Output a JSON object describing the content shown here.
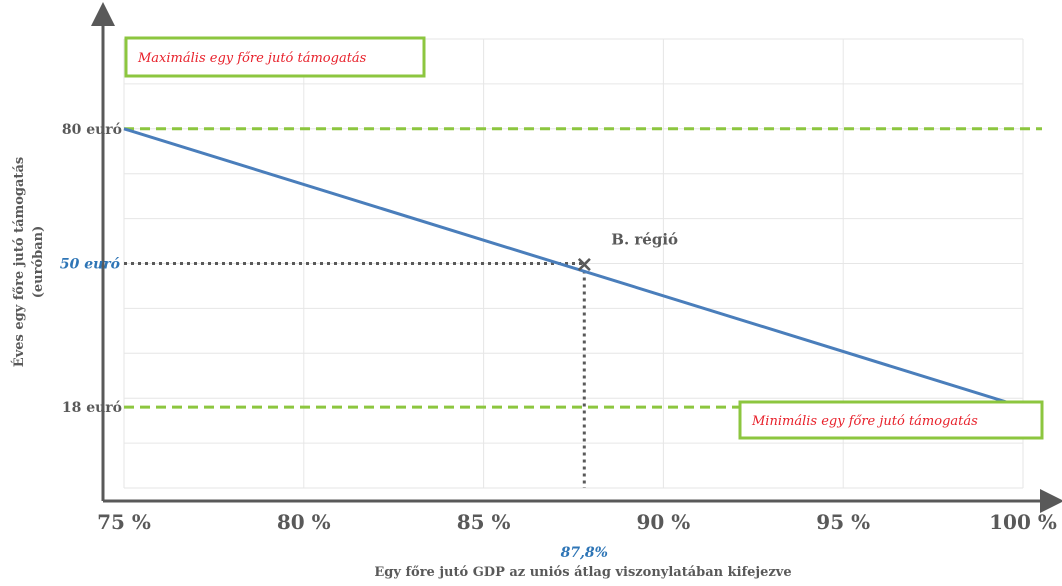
{
  "chart_data": {
    "type": "line",
    "title": "",
    "xlabel": "Egy főre jutó GDP az uniós átlag viszonylatában kifejezve",
    "ylabel_line1": "Éves egy főre jutó támogatás",
    "ylabel_line2": "(euróban)",
    "xlim": [
      75,
      100
    ],
    "ylim": [
      0,
      100
    ],
    "x_ticks": [
      {
        "value": 75,
        "label": "75 %"
      },
      {
        "value": 80,
        "label": "80 %"
      },
      {
        "value": 85,
        "label": "85 %"
      },
      {
        "value": 90,
        "label": "90 %"
      },
      {
        "value": 95,
        "label": "95 %"
      },
      {
        "value": 100,
        "label": "100 %"
      }
    ],
    "y_ticks": [
      {
        "value": 80,
        "label": "80 euró"
      },
      {
        "value": 18,
        "label": "18 euró"
      }
    ],
    "series": [
      {
        "x": [
          75,
          100
        ],
        "y": [
          80,
          18
        ],
        "color": "#4a7ebb"
      }
    ],
    "reference_lines": [
      {
        "y": 80,
        "label": "Maximális egy főre jutó támogatás",
        "color": "#8cc63f"
      },
      {
        "y": 18,
        "label": "Minimális egy főre jutó támogatás",
        "color": "#8cc63f"
      }
    ],
    "highlight": {
      "x": 87.8,
      "y": 50,
      "x_label": "87,8%",
      "y_label": "50 euró",
      "point_label": "B. régió",
      "marker": "×"
    },
    "grid": true,
    "colors": {
      "line": "#4a7ebb",
      "reference": "#8cc63f",
      "box_text": "#e8212b",
      "highlight": "#2e75b6",
      "axis": "#595959",
      "dotted": "#595959"
    }
  }
}
